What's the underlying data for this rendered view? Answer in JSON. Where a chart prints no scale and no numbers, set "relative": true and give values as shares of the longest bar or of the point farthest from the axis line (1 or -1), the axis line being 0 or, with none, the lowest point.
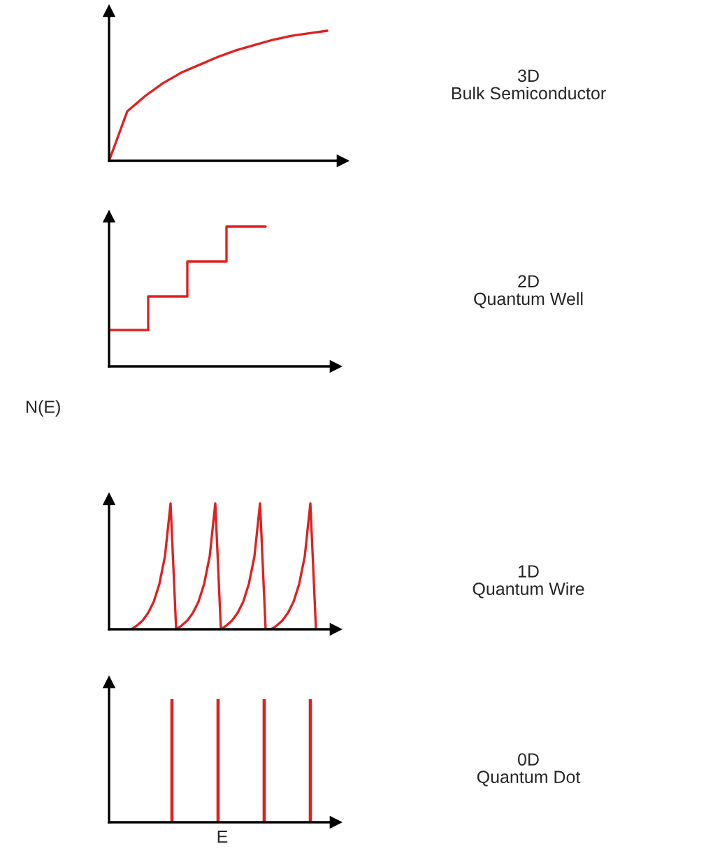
{
  "chart_data": [
    {
      "type": "line",
      "relative": true,
      "categories": [
        null,
        null,
        null,
        null,
        null,
        null,
        null,
        null,
        null,
        null,
        null,
        null,
        null
      ],
      "color": "#e02020",
      "values": [
        0,
        0.38,
        0.5,
        0.6,
        0.68,
        0.74,
        0.8,
        0.85,
        0.89,
        0.93,
        0.96,
        0.98,
        1.0
      ],
      "annotations": [
        "3D\nBulk Semiconductor"
      ]
    },
    {
      "type": "step",
      "relative": true,
      "categories": [
        null,
        null,
        null,
        null,
        null
      ],
      "color": "#e02020",
      "values": [
        0.26,
        0.5,
        0.75,
        1.0,
        1.0
      ],
      "annotations": [
        "2D\nQuantum Well"
      ]
    },
    {
      "type": "line",
      "relative": true,
      "ylabel": "N(E)",
      "color": "#e02020",
      "categories": [
        null,
        null,
        null,
        null,
        null,
        null,
        null,
        null,
        null,
        null,
        null,
        null,
        null,
        null,
        null,
        null,
        null,
        null,
        null,
        null,
        null,
        null,
        null,
        null,
        null,
        null,
        null,
        null,
        null,
        null,
        null,
        null,
        null,
        null,
        null,
        null,
        null,
        null,
        null,
        null,
        null
      ],
      "values": [
        null,
        null,
        null,
        null,
        0,
        0.03,
        0.07,
        0.13,
        0.22,
        0.36,
        0.58,
        1.0,
        0,
        0.03,
        0.07,
        0.13,
        0.22,
        0.36,
        0.58,
        1.0,
        0,
        0.03,
        0.07,
        0.13,
        0.22,
        0.36,
        0.58,
        1.0,
        0,
        0,
        0.03,
        0.07,
        0.13,
        0.22,
        0.36,
        0.58,
        1.0,
        0,
        null,
        null,
        null
      ],
      "annotations": [
        "1D\nQuantum Wire"
      ]
    },
    {
      "type": "bar",
      "relative": true,
      "xlabel": "E",
      "categories": [
        null,
        null,
        null,
        null
      ],
      "color": "#e02020",
      "values": [
        1,
        1,
        1,
        1
      ],
      "annotations": [
        "0D\nQuantum Dot"
      ]
    }
  ]
}
